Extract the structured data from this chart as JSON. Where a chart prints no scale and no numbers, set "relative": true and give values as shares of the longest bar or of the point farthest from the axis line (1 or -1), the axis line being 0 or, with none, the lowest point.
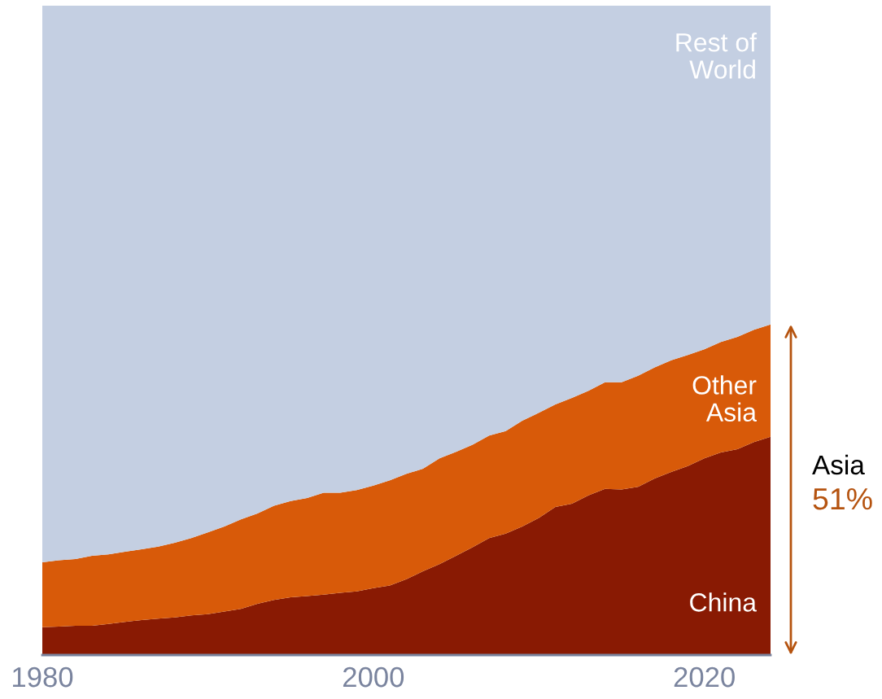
{
  "chart_data": {
    "type": "area",
    "stacked": true,
    "relative": true,
    "tick_labels": "x",
    "x": [
      1980,
      1981,
      1982,
      1983,
      1984,
      1985,
      1986,
      1987,
      1988,
      1989,
      1990,
      1991,
      1992,
      1993,
      1994,
      1995,
      1996,
      1997,
      1998,
      1999,
      2000,
      2001,
      2002,
      2003,
      2004,
      2005,
      2006,
      2007,
      2008,
      2009,
      2010,
      2011,
      2012,
      2013,
      2014,
      2015,
      2016,
      2017,
      2018,
      2019,
      2020,
      2021,
      2022,
      2023,
      2024
    ],
    "xlim": [
      1980,
      2024
    ],
    "xticks": [
      1980,
      2000,
      2020
    ],
    "series": [
      {
        "name": "China",
        "color": "#891a03",
        "values": [
          0.043,
          0.044,
          0.045,
          0.045,
          0.048,
          0.051,
          0.054,
          0.056,
          0.058,
          0.061,
          0.063,
          0.067,
          0.071,
          0.079,
          0.085,
          0.089,
          0.091,
          0.093,
          0.096,
          0.098,
          0.103,
          0.107,
          0.117,
          0.129,
          0.14,
          0.153,
          0.166,
          0.18,
          0.187,
          0.198,
          0.211,
          0.228,
          0.233,
          0.246,
          0.256,
          0.255,
          0.259,
          0.272,
          0.282,
          0.291,
          0.303,
          0.312,
          0.317,
          0.328,
          0.336
        ]
      },
      {
        "name": "Other\nAsia",
        "color": "#d85a09",
        "values": [
          0.1,
          0.102,
          0.103,
          0.108,
          0.107,
          0.108,
          0.109,
          0.111,
          0.115,
          0.119,
          0.126,
          0.131,
          0.138,
          0.139,
          0.145,
          0.148,
          0.151,
          0.157,
          0.154,
          0.156,
          0.158,
          0.162,
          0.162,
          0.158,
          0.163,
          0.16,
          0.158,
          0.158,
          0.158,
          0.163,
          0.162,
          0.158,
          0.163,
          0.161,
          0.164,
          0.165,
          0.171,
          0.171,
          0.172,
          0.171,
          0.168,
          0.17,
          0.173,
          0.173,
          0.173
        ]
      },
      {
        "name": "Rest of\nWorld",
        "color": "#c4cfe2",
        "values": [
          0.857,
          0.854,
          0.852,
          0.847,
          0.845,
          0.841,
          0.837,
          0.833,
          0.827,
          0.82,
          0.811,
          0.802,
          0.791,
          0.782,
          0.77,
          0.763,
          0.758,
          0.75,
          0.75,
          0.746,
          0.739,
          0.731,
          0.721,
          0.713,
          0.697,
          0.687,
          0.676,
          0.662,
          0.655,
          0.639,
          0.627,
          0.614,
          0.604,
          0.593,
          0.58,
          0.58,
          0.57,
          0.557,
          0.546,
          0.538,
          0.529,
          0.518,
          0.51,
          0.499,
          0.491
        ]
      }
    ],
    "annotations": [
      "Asia",
      "51%"
    ]
  }
}
